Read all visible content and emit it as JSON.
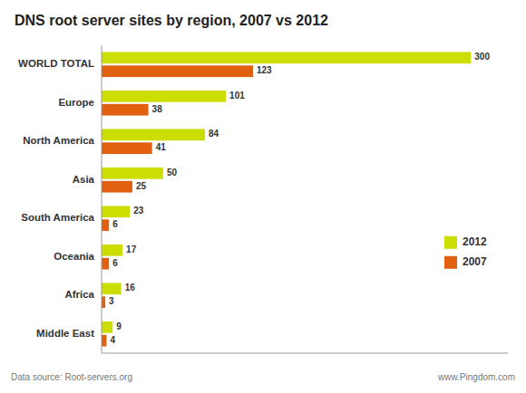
{
  "chart_data": {
    "type": "bar",
    "orientation": "horizontal",
    "title": "DNS root server sites by region, 2007 vs 2012",
    "categories": [
      "WORLD TOTAL",
      "Europe",
      "North America",
      "Asia",
      "South America",
      "Oceania",
      "Africa",
      "Middle East"
    ],
    "series": [
      {
        "name": "2012",
        "color": "#ccdd00",
        "values": [
          300,
          101,
          84,
          50,
          23,
          17,
          16,
          9
        ]
      },
      {
        "name": "2007",
        "color": "#e06010",
        "values": [
          123,
          38,
          41,
          25,
          6,
          6,
          3,
          4
        ]
      }
    ],
    "xlim": [
      0,
      330
    ],
    "tick_labels": "y",
    "data_labels": true,
    "grid": false,
    "legend": "right",
    "annotations": [
      "Data source: Root-servers.org",
      "www.Pingdom.com"
    ]
  }
}
